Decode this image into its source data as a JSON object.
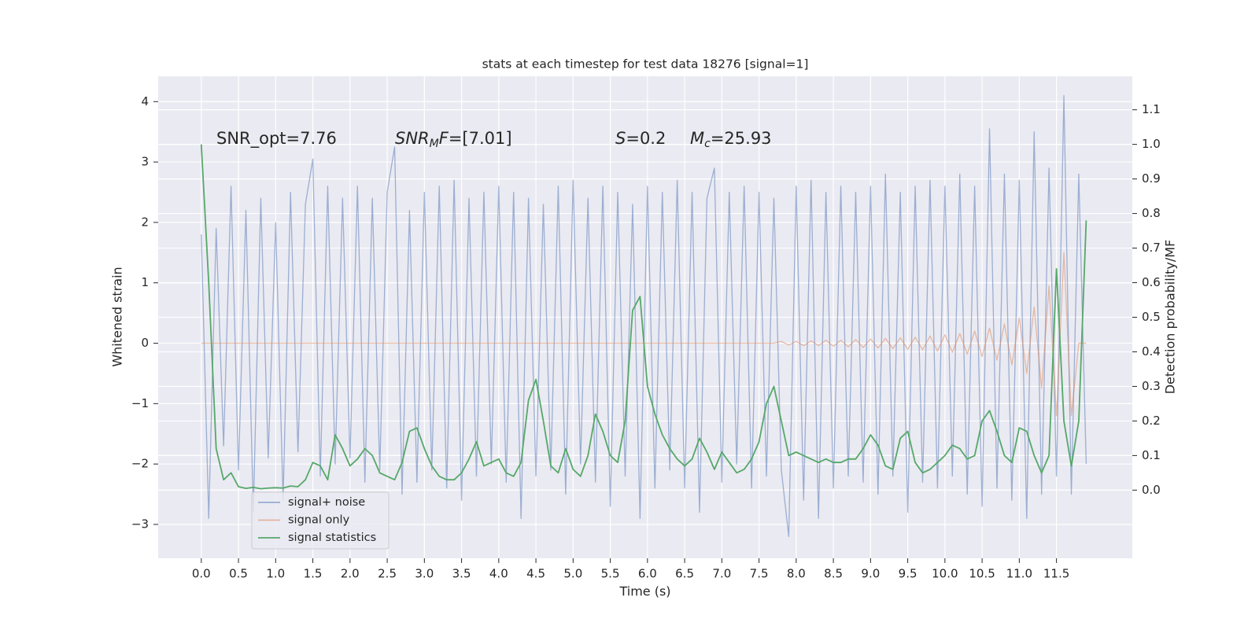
{
  "chart_data": {
    "type": "line",
    "title": "stats at each timestep for test data 18276 [signal=1]",
    "xlabel": "Time (s)",
    "ylabel": "Whitened strain",
    "y2label": "Detection probability/MF",
    "annotations": [
      {
        "parts": [
          {
            "t": "SNR_opt=7.76"
          }
        ]
      },
      {
        "parts": [
          {
            "t": "SNR",
            "italic": true
          },
          {
            "t": "M",
            "italic": true,
            "sub": true
          },
          {
            "t": "F",
            "italic": true
          },
          {
            "t": "=[7.01]"
          }
        ]
      },
      {
        "parts": [
          {
            "t": "S",
            "italic": true
          },
          {
            "t": "=0.2"
          }
        ]
      },
      {
        "parts": [
          {
            "t": "M",
            "italic": true
          },
          {
            "t": "c",
            "italic": true,
            "sub": true
          },
          {
            "t": "=25.93"
          }
        ]
      }
    ],
    "grid": true,
    "legend": "lower left",
    "xlim": [
      -0.58,
      12.52
    ],
    "ylim": [
      -3.56,
      4.42
    ],
    "y2lim": [
      -0.197,
      1.197
    ],
    "xticks": [
      {
        "value": 0,
        "label": "0.0"
      },
      0.5,
      {
        "value": 1,
        "label": "1.0"
      },
      1.5,
      {
        "value": 2,
        "label": "2.0"
      },
      2.5,
      {
        "value": 3,
        "label": "3.0"
      },
      3.5,
      {
        "value": 4,
        "label": "4.0"
      },
      4.5,
      {
        "value": 5,
        "label": "5.0"
      },
      5.5,
      {
        "value": 6,
        "label": "6.0"
      },
      6.5,
      {
        "value": 7,
        "label": "7.0"
      },
      7.5,
      {
        "value": 8,
        "label": "8.0"
      },
      8.5,
      {
        "value": 9,
        "label": "9.0"
      },
      9.5,
      {
        "value": 10,
        "label": "10.0"
      },
      10.5,
      {
        "value": 11,
        "label": "11.0"
      },
      11.5
    ],
    "yticks": [
      {
        "value": -3,
        "label": "−3"
      },
      {
        "value": -2,
        "label": "−2"
      },
      {
        "value": -1,
        "label": "−1"
      },
      0,
      1,
      2,
      3,
      4
    ],
    "y2ticks": [
      {
        "value": 0,
        "label": "0.0"
      },
      0.1,
      0.2,
      0.3,
      0.4,
      0.5,
      0.6,
      0.7,
      0.8,
      0.9,
      {
        "value": 1,
        "label": "1.0"
      },
      1.1
    ],
    "x": [
      0,
      0.1,
      0.2,
      0.3,
      0.4,
      0.5,
      0.6,
      0.7,
      0.8,
      0.9,
      1,
      1.1,
      1.2,
      1.3,
      1.4,
      1.5,
      1.6,
      1.7,
      1.8,
      1.9,
      2,
      2.1,
      2.2,
      2.3,
      2.4,
      2.5,
      2.6,
      2.7,
      2.8,
      2.9,
      3,
      3.1,
      3.2,
      3.3,
      3.4,
      3.5,
      3.6,
      3.7,
      3.8,
      3.9,
      4,
      4.1,
      4.2,
      4.3,
      4.4,
      4.5,
      4.6,
      4.7,
      4.8,
      4.9,
      5,
      5.1,
      5.2,
      5.3,
      5.4,
      5.5,
      5.6,
      5.7,
      5.8,
      5.9,
      6,
      6.1,
      6.2,
      6.3,
      6.4,
      6.5,
      6.6,
      6.7,
      6.8,
      6.9,
      7,
      7.1,
      7.2,
      7.3,
      7.4,
      7.5,
      7.6,
      7.7,
      7.8,
      7.9,
      8,
      8.1,
      8.2,
      8.3,
      8.4,
      8.5,
      8.6,
      8.7,
      8.8,
      8.9,
      9,
      9.1,
      9.2,
      9.3,
      9.4,
      9.5,
      9.6,
      9.7,
      9.8,
      9.9,
      10,
      10.1,
      10.2,
      10.3,
      10.4,
      10.5,
      10.6,
      10.7,
      10.8,
      10.9,
      11,
      11.1,
      11.2,
      11.3,
      11.4,
      11.5,
      11.6,
      11.7,
      11.8,
      11.9
    ],
    "series": [
      {
        "name": "signal+ noise",
        "color": "#4c72b0",
        "values": [
          1.8,
          -2.9,
          1.9,
          -1.7,
          2.6,
          -2.1,
          2.2,
          -2.8,
          2.4,
          -1.9,
          2.0,
          -2.6,
          2.5,
          -1.8,
          2.3,
          3.05,
          -2.2,
          2.6,
          -2.0,
          2.4,
          -1.9,
          2.6,
          -2.3,
          2.4,
          -2.1,
          2.5,
          3.25,
          -2.5,
          2.2,
          -2.3,
          2.5,
          -2.1,
          2.6,
          -2.4,
          2.7,
          -2.6,
          2.4,
          -2.2,
          2.5,
          -2.0,
          2.6,
          -2.3,
          2.5,
          -2.9,
          2.4,
          -2.2,
          2.3,
          -2.1,
          2.6,
          -2.5,
          2.7,
          -2.0,
          2.4,
          -2.3,
          2.6,
          -2.7,
          2.5,
          -2.2,
          2.3,
          -2.9,
          2.6,
          -2.4,
          2.5,
          -2.1,
          2.7,
          -2.4,
          2.5,
          -2.8,
          2.4,
          2.9,
          -2.3,
          2.5,
          -2.0,
          2.6,
          -2.4,
          2.5,
          -2.2,
          2.4,
          -2.1,
          -3.2,
          2.6,
          -2.6,
          2.7,
          -2.9,
          2.5,
          -2.4,
          2.6,
          -2.2,
          2.5,
          -2.3,
          2.6,
          -2.5,
          2.8,
          -2.2,
          2.5,
          -2.8,
          2.6,
          -2.3,
          2.7,
          -2.4,
          2.6,
          -2.2,
          2.8,
          -2.5,
          2.6,
          -2.7,
          3.55,
          -2.4,
          2.8,
          -2.6,
          2.7,
          -2.9,
          3.5,
          -2.5,
          2.9,
          -2.2,
          4.1,
          -2.5,
          2.8,
          -2.0
        ]
      },
      {
        "name": "signal only",
        "color": "#dd8452",
        "values": [
          0,
          0,
          0,
          0,
          0,
          0,
          0,
          0,
          0,
          0,
          0,
          0,
          0,
          0,
          0,
          0,
          0,
          0,
          0,
          0,
          0,
          0,
          0,
          0,
          0,
          0,
          0,
          0,
          0,
          0,
          0,
          0,
          0,
          0,
          0,
          0,
          0,
          0,
          0,
          0,
          0,
          0,
          0,
          0,
          0,
          0,
          0,
          0,
          0,
          0,
          0,
          0,
          0,
          0,
          0,
          0,
          0,
          0,
          0,
          0,
          0,
          0,
          0,
          0,
          0,
          0,
          0,
          0,
          0,
          0,
          0,
          0,
          0,
          0,
          0,
          0,
          0,
          0,
          0.03,
          -0.03,
          0.03,
          -0.04,
          0.04,
          -0.04,
          0.05,
          -0.05,
          0.05,
          -0.06,
          0.06,
          -0.07,
          0.07,
          -0.08,
          0.08,
          -0.09,
          0.09,
          -0.1,
          0.1,
          -0.11,
          0.12,
          -0.13,
          0.14,
          -0.15,
          0.16,
          -0.18,
          0.2,
          -0.22,
          0.25,
          -0.28,
          0.32,
          -0.36,
          0.42,
          -0.5,
          0.6,
          -0.75,
          0.95,
          -1.2,
          1.5,
          -1.2,
          0,
          0
        ]
      },
      {
        "name": "signal statistics",
        "color": "#55a868",
        "axis": "y2",
        "values": [
          1.0,
          0.6,
          0.12,
          0.03,
          0.05,
          0.01,
          0.005,
          0.008,
          0.004,
          0.006,
          0.007,
          0.006,
          0.012,
          0.01,
          0.03,
          0.08,
          0.07,
          0.03,
          0.16,
          0.12,
          0.07,
          0.09,
          0.12,
          0.1,
          0.05,
          0.04,
          0.03,
          0.08,
          0.17,
          0.18,
          0.12,
          0.07,
          0.04,
          0.03,
          0.03,
          0.05,
          0.09,
          0.14,
          0.07,
          0.08,
          0.09,
          0.05,
          0.04,
          0.08,
          0.26,
          0.32,
          0.2,
          0.07,
          0.05,
          0.12,
          0.06,
          0.04,
          0.1,
          0.22,
          0.17,
          0.1,
          0.08,
          0.2,
          0.52,
          0.56,
          0.3,
          0.22,
          0.16,
          0.12,
          0.09,
          0.07,
          0.09,
          0.15,
          0.11,
          0.06,
          0.11,
          0.08,
          0.05,
          0.06,
          0.09,
          0.14,
          0.25,
          0.3,
          0.2,
          0.1,
          0.11,
          0.1,
          0.09,
          0.08,
          0.09,
          0.08,
          0.08,
          0.09,
          0.09,
          0.12,
          0.16,
          0.13,
          0.07,
          0.06,
          0.15,
          0.17,
          0.08,
          0.05,
          0.06,
          0.08,
          0.1,
          0.13,
          0.12,
          0.09,
          0.1,
          0.2,
          0.23,
          0.17,
          0.1,
          0.08,
          0.18,
          0.17,
          0.1,
          0.05,
          0.1,
          0.64,
          0.2,
          0.07,
          0.2,
          0.78
        ]
      }
    ]
  }
}
